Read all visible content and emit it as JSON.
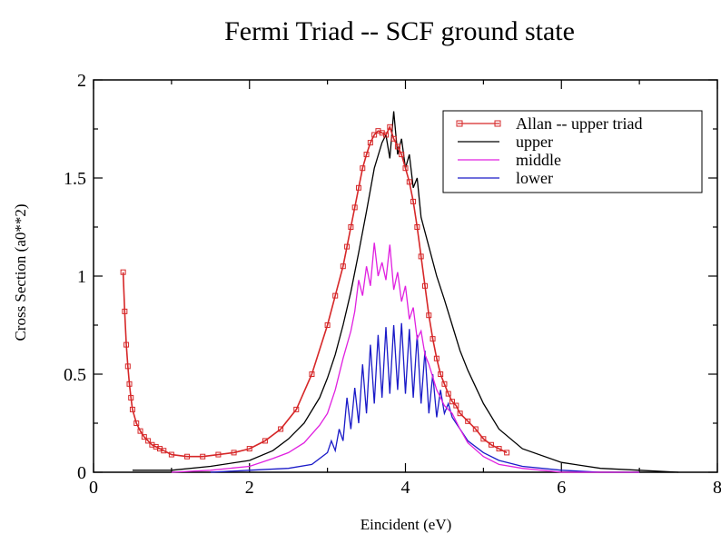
{
  "chart_data": {
    "type": "line",
    "title": "Fermi Triad -- SCF ground state",
    "xlabel": "Eincident (eV)",
    "ylabel": "Cross Section (a0**2)",
    "xlim": [
      0,
      8
    ],
    "ylim": [
      0,
      2
    ],
    "xticks": [
      0,
      2,
      4,
      6,
      8
    ],
    "yticks": [
      0,
      0.5,
      1,
      1.5,
      2
    ],
    "xtick_labels": [
      "0",
      "2",
      "4",
      "6",
      "8"
    ],
    "ytick_labels": [
      "0",
      "0.5",
      "1",
      "1.5",
      "2"
    ],
    "grid": false,
    "legend_position": "top-right",
    "series": [
      {
        "name": "Allan -- upper triad",
        "color": "#d62728",
        "marker": "square",
        "x": [
          0.38,
          0.4,
          0.42,
          0.44,
          0.46,
          0.48,
          0.5,
          0.55,
          0.6,
          0.65,
          0.7,
          0.75,
          0.8,
          0.85,
          0.9,
          1.0,
          1.2,
          1.4,
          1.6,
          1.8,
          2.0,
          2.2,
          2.4,
          2.6,
          2.8,
          3.0,
          3.1,
          3.2,
          3.25,
          3.3,
          3.35,
          3.4,
          3.45,
          3.5,
          3.55,
          3.6,
          3.65,
          3.7,
          3.75,
          3.8,
          3.85,
          3.9,
          3.95,
          4.0,
          4.05,
          4.1,
          4.15,
          4.2,
          4.25,
          4.3,
          4.35,
          4.4,
          4.45,
          4.5,
          4.55,
          4.6,
          4.65,
          4.7,
          4.8,
          4.9,
          5.0,
          5.1,
          5.2,
          5.3
        ],
        "y": [
          1.02,
          0.82,
          0.65,
          0.54,
          0.45,
          0.38,
          0.32,
          0.25,
          0.21,
          0.18,
          0.16,
          0.14,
          0.13,
          0.12,
          0.11,
          0.09,
          0.08,
          0.08,
          0.09,
          0.1,
          0.12,
          0.16,
          0.22,
          0.32,
          0.5,
          0.75,
          0.9,
          1.05,
          1.15,
          1.25,
          1.35,
          1.45,
          1.55,
          1.62,
          1.68,
          1.72,
          1.74,
          1.73,
          1.72,
          1.76,
          1.7,
          1.66,
          1.62,
          1.55,
          1.48,
          1.38,
          1.25,
          1.1,
          0.95,
          0.8,
          0.68,
          0.58,
          0.5,
          0.45,
          0.4,
          0.36,
          0.34,
          0.3,
          0.26,
          0.22,
          0.17,
          0.14,
          0.12,
          0.1
        ]
      },
      {
        "name": "upper",
        "color": "#000000",
        "x": [
          0.5,
          1.0,
          1.5,
          2.0,
          2.3,
          2.5,
          2.7,
          2.9,
          3.0,
          3.1,
          3.2,
          3.3,
          3.4,
          3.5,
          3.6,
          3.7,
          3.75,
          3.8,
          3.85,
          3.9,
          3.95,
          4.0,
          4.05,
          4.1,
          4.15,
          4.2,
          4.3,
          4.4,
          4.5,
          4.6,
          4.7,
          4.8,
          5.0,
          5.2,
          5.5,
          6.0,
          6.5,
          7.0,
          7.5
        ],
        "y": [
          0.01,
          0.01,
          0.03,
          0.06,
          0.11,
          0.17,
          0.25,
          0.38,
          0.48,
          0.6,
          0.75,
          0.92,
          1.12,
          1.33,
          1.55,
          1.68,
          1.72,
          1.6,
          1.84,
          1.62,
          1.7,
          1.55,
          1.62,
          1.45,
          1.5,
          1.3,
          1.15,
          1.0,
          0.88,
          0.75,
          0.62,
          0.52,
          0.35,
          0.22,
          0.12,
          0.05,
          0.02,
          0.01,
          0.0
        ]
      },
      {
        "name": "middle",
        "color": "#e020e0",
        "x": [
          1.0,
          1.5,
          2.0,
          2.3,
          2.5,
          2.7,
          2.9,
          3.0,
          3.1,
          3.2,
          3.3,
          3.35,
          3.4,
          3.45,
          3.5,
          3.55,
          3.6,
          3.65,
          3.7,
          3.75,
          3.8,
          3.85,
          3.9,
          3.95,
          4.0,
          4.05,
          4.1,
          4.15,
          4.2,
          4.25,
          4.3,
          4.4,
          4.5,
          4.6,
          4.7,
          4.8,
          5.0,
          5.2,
          5.5,
          6.0,
          6.5,
          7.0
        ],
        "y": [
          0.0,
          0.01,
          0.03,
          0.07,
          0.1,
          0.15,
          0.24,
          0.3,
          0.42,
          0.58,
          0.72,
          0.82,
          0.98,
          0.9,
          1.05,
          0.95,
          1.17,
          1.0,
          1.07,
          0.98,
          1.16,
          0.93,
          1.02,
          0.87,
          0.95,
          0.78,
          0.84,
          0.68,
          0.72,
          0.6,
          0.55,
          0.42,
          0.34,
          0.3,
          0.22,
          0.15,
          0.08,
          0.04,
          0.02,
          0.0,
          0.0,
          0.0
        ]
      },
      {
        "name": "lower",
        "color": "#1a1ac8",
        "x": [
          1.5,
          2.0,
          2.5,
          2.8,
          3.0,
          3.05,
          3.1,
          3.15,
          3.2,
          3.25,
          3.3,
          3.35,
          3.4,
          3.45,
          3.5,
          3.55,
          3.6,
          3.65,
          3.7,
          3.75,
          3.8,
          3.85,
          3.9,
          3.95,
          4.0,
          4.05,
          4.1,
          4.15,
          4.2,
          4.25,
          4.3,
          4.35,
          4.4,
          4.45,
          4.5,
          4.55,
          4.6,
          4.7,
          4.8,
          5.0,
          5.2,
          5.5,
          6.0,
          6.5,
          7.0
        ],
        "y": [
          0.0,
          0.01,
          0.02,
          0.04,
          0.1,
          0.16,
          0.11,
          0.22,
          0.16,
          0.38,
          0.22,
          0.43,
          0.25,
          0.55,
          0.3,
          0.65,
          0.35,
          0.7,
          0.38,
          0.74,
          0.4,
          0.75,
          0.42,
          0.76,
          0.4,
          0.73,
          0.38,
          0.7,
          0.35,
          0.62,
          0.3,
          0.5,
          0.28,
          0.42,
          0.3,
          0.35,
          0.28,
          0.22,
          0.16,
          0.1,
          0.06,
          0.03,
          0.01,
          0.0,
          0.0
        ]
      }
    ]
  }
}
